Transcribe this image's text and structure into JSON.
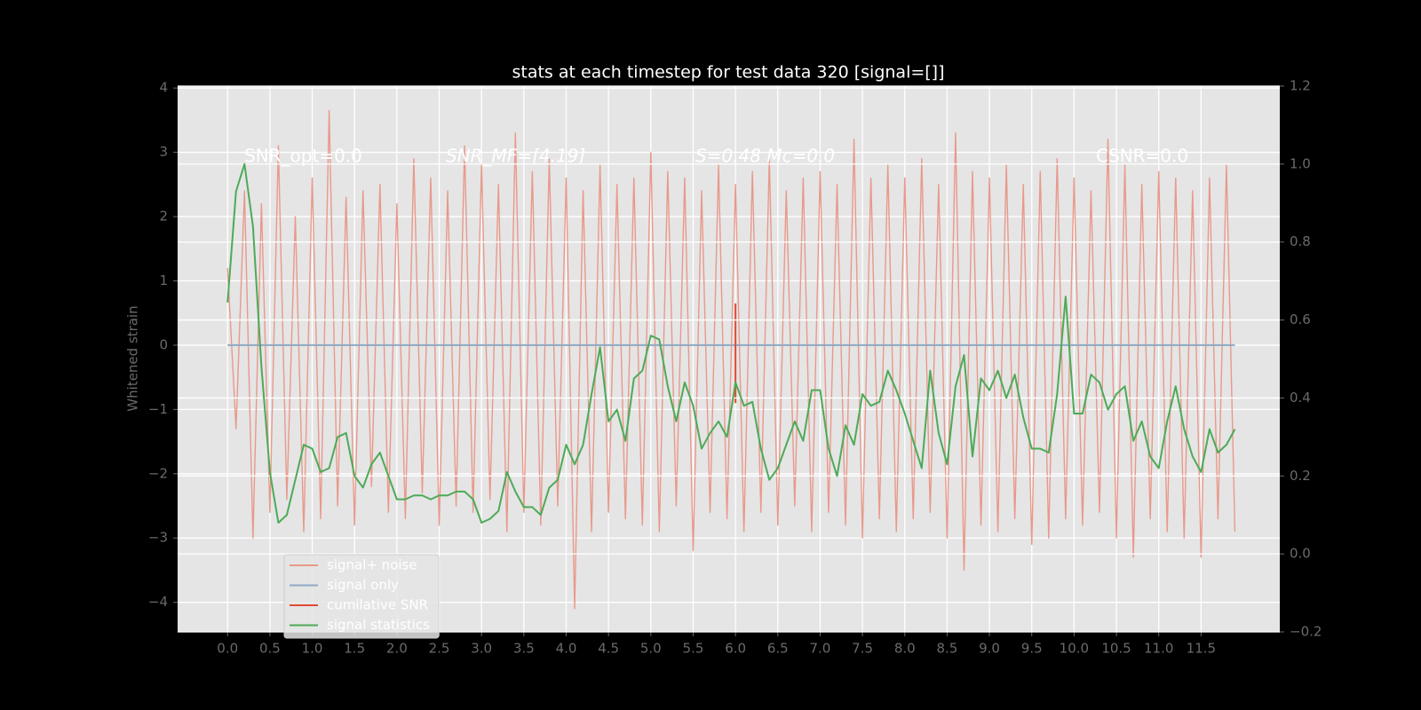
{
  "chart_data": {
    "type": "line",
    "title": "stats at each timestep for test data 320 [signal=[]]",
    "ylabel": "Whitened strain",
    "annotations": [
      "SNR_opt=0.0",
      "SNR_MF=[4.19]",
      "S=0.48  Mc=0.0",
      "CSNR=0.0"
    ],
    "x": [
      0.0,
      0.1,
      0.2,
      0.3,
      0.4,
      0.5,
      0.6,
      0.7,
      0.8,
      0.9,
      1.0,
      1.1,
      1.2,
      1.3,
      1.4,
      1.5,
      1.6,
      1.7,
      1.8,
      1.9,
      2.0,
      2.1,
      2.2,
      2.3,
      2.4,
      2.5,
      2.6,
      2.7,
      2.8,
      2.9,
      3.0,
      3.1,
      3.2,
      3.3,
      3.4,
      3.5,
      3.6,
      3.7,
      3.8,
      3.9,
      4.0,
      4.1,
      4.2,
      4.3,
      4.4,
      4.5,
      4.6,
      4.7,
      4.8,
      4.9,
      5.0,
      5.1,
      5.2,
      5.3,
      5.4,
      5.5,
      5.6,
      5.7,
      5.8,
      5.9,
      6.0,
      6.1,
      6.2,
      6.3,
      6.4,
      6.5,
      6.6,
      6.7,
      6.8,
      6.9,
      7.0,
      7.1,
      7.2,
      7.3,
      7.4,
      7.5,
      7.6,
      7.7,
      7.8,
      7.9,
      8.0,
      8.1,
      8.2,
      8.3,
      8.4,
      8.5,
      8.6,
      8.7,
      8.8,
      8.9,
      9.0,
      9.1,
      9.2,
      9.3,
      9.4,
      9.5,
      9.6,
      9.7,
      9.8,
      9.9,
      10.0,
      10.1,
      10.2,
      10.3,
      10.4,
      10.5,
      10.6,
      10.7,
      10.8,
      10.9,
      11.0,
      11.1,
      11.2,
      11.3,
      11.4,
      11.5,
      11.6,
      11.7,
      11.8,
      11.9
    ],
    "series": [
      {
        "name": "signal+ noise",
        "color": "#e8998b",
        "values": [
          1.2,
          -1.3,
          2.4,
          -3.0,
          2.2,
          -2.6,
          3.1,
          -2.4,
          2.0,
          -2.9,
          2.6,
          -2.7,
          3.65,
          -2.5,
          2.3,
          -2.8,
          2.4,
          -2.2,
          2.5,
          -2.6,
          2.2,
          -2.7,
          2.9,
          -2.3,
          2.6,
          -2.8,
          2.4,
          -2.5,
          3.1,
          -2.6,
          2.8,
          -2.4,
          2.5,
          -2.9,
          3.3,
          -2.6,
          2.7,
          -2.8,
          2.9,
          -2.5,
          2.6,
          -4.1,
          2.4,
          -2.9,
          2.8,
          -2.6,
          2.5,
          -2.7,
          2.6,
          -2.8,
          3.0,
          -2.9,
          2.7,
          -2.5,
          2.6,
          -3.2,
          2.4,
          -2.6,
          2.8,
          -2.7,
          2.5,
          -2.9,
          2.7,
          -2.6,
          2.9,
          -2.8,
          2.4,
          -2.5,
          2.6,
          -2.9,
          2.7,
          -2.6,
          2.5,
          -2.8,
          3.2,
          -3.0,
          2.6,
          -2.7,
          2.8,
          -2.9,
          2.6,
          -2.7,
          2.9,
          -2.6,
          2.5,
          -3.0,
          3.3,
          -3.5,
          2.7,
          -2.8,
          2.6,
          -2.9,
          2.8,
          -2.7,
          2.5,
          -3.1,
          2.7,
          -3.0,
          2.9,
          -2.7,
          2.6,
          -2.8,
          2.4,
          -2.6,
          3.2,
          -3.0,
          2.8,
          -3.3,
          2.5,
          -2.7,
          2.7,
          -2.9,
          2.6,
          -3.0,
          2.4,
          -3.3,
          2.6,
          -2.7,
          2.8,
          -2.9
        ]
      },
      {
        "name": "signal only",
        "color": "#8fa9c4",
        "x": [
          0.0,
          11.9
        ],
        "values": [
          0,
          0
        ]
      },
      {
        "name": "cumilative SNR",
        "color": "#e24a33",
        "x": [
          6.0,
          6.0
        ],
        "values": [
          0.65,
          -0.9
        ]
      },
      {
        "name": "signal statistics",
        "color": "#4daa57",
        "axis": "y2",
        "values": [
          0.645,
          0.93,
          1.0,
          0.84,
          0.48,
          0.21,
          0.08,
          0.1,
          0.19,
          0.28,
          0.27,
          0.21,
          0.22,
          0.3,
          0.31,
          0.2,
          0.17,
          0.23,
          0.26,
          0.2,
          0.14,
          0.14,
          0.15,
          0.15,
          0.14,
          0.15,
          0.15,
          0.16,
          0.16,
          0.14,
          0.08,
          0.09,
          0.11,
          0.21,
          0.16,
          0.12,
          0.12,
          0.1,
          0.17,
          0.19,
          0.28,
          0.23,
          0.28,
          0.41,
          0.53,
          0.34,
          0.37,
          0.29,
          0.45,
          0.47,
          0.56,
          0.55,
          0.43,
          0.34,
          0.44,
          0.38,
          0.27,
          0.31,
          0.34,
          0.3,
          0.44,
          0.38,
          0.39,
          0.27,
          0.19,
          0.22,
          0.28,
          0.34,
          0.29,
          0.42,
          0.42,
          0.27,
          0.2,
          0.33,
          0.28,
          0.41,
          0.38,
          0.39,
          0.47,
          0.42,
          0.36,
          0.29,
          0.22,
          0.47,
          0.31,
          0.23,
          0.43,
          0.51,
          0.25,
          0.45,
          0.42,
          0.47,
          0.4,
          0.46,
          0.35,
          0.27,
          0.27,
          0.26,
          0.41,
          0.66,
          0.36,
          0.36,
          0.46,
          0.44,
          0.37,
          0.41,
          0.43,
          0.29,
          0.34,
          0.25,
          0.22,
          0.34,
          0.43,
          0.32,
          0.25,
          0.21,
          0.32,
          0.26,
          0.28,
          0.32
        ]
      }
    ],
    "xlim": [
      -0.59,
      12.43
    ],
    "xticks": [
      {
        "value": 0,
        "label": "0.0"
      },
      0.5,
      {
        "value": 1,
        "label": "1.0"
      },
      1.5,
      {
        "value": 2,
        "label": "2.0"
      },
      2.5,
      {
        "value": 3,
        "label": "3.0"
      },
      3.5,
      {
        "value": 4,
        "label": "4.0"
      },
      4.5,
      {
        "value": 5,
        "label": "5.0"
      },
      5.5,
      {
        "value": 6,
        "label": "6.0"
      },
      6.5,
      {
        "value": 7,
        "label": "7.0"
      },
      7.5,
      {
        "value": 8,
        "label": "8.0"
      },
      8.5,
      {
        "value": 9,
        "label": "9.0"
      },
      9.5,
      {
        "value": 10,
        "label": "10.0"
      },
      10.5,
      {
        "value": 11,
        "label": "11.0"
      },
      11.5
    ],
    "ylim": [
      -4.46,
      4.03
    ],
    "yticks": [
      {
        "value": -4,
        "label": "−4"
      },
      {
        "value": -3,
        "label": "−3"
      },
      {
        "value": -2,
        "label": "−2"
      },
      {
        "value": -1,
        "label": "−1"
      },
      0,
      1,
      2,
      3,
      4
    ],
    "y2lim": [
      -0.2,
      1.2
    ],
    "y2ticks": [
      {
        "value": -0.2,
        "label": "−0.2"
      },
      {
        "value": 0,
        "label": "0.0"
      },
      0.2,
      0.4,
      0.6,
      0.8,
      {
        "value": 1,
        "label": "1.0"
      },
      1.2
    ],
    "grid": true,
    "legend": "lower left"
  }
}
